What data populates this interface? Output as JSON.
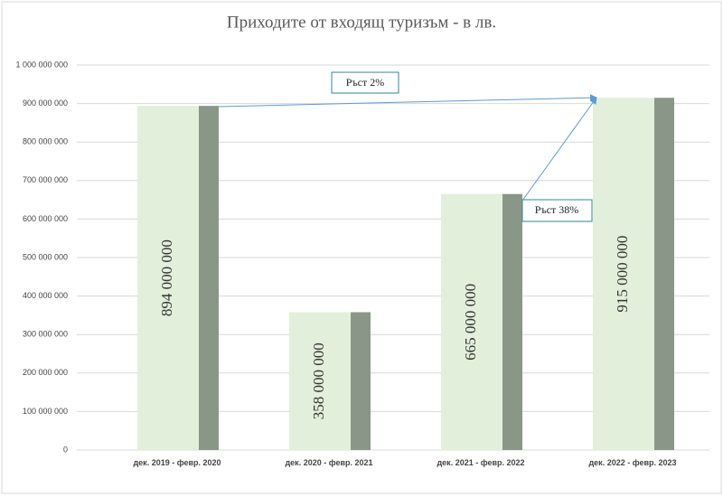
{
  "chart_data": {
    "type": "bar",
    "title": "Приходите от входящ туризъм - в лв.",
    "categories": [
      "дек. 2019 - февр. 2020",
      "дек. 2020 - февр. 2021",
      "дек. 2021 - февр. 2022",
      "дек. 2022 - февр. 2023"
    ],
    "values": [
      894000000,
      358000000,
      665000000,
      915000000
    ],
    "value_labels": [
      "894 000 000",
      "358 000 000",
      "665 000 000",
      "915 000 000"
    ],
    "colors": [
      "#e2efda",
      "#8a9788"
    ],
    "ylim": [
      0,
      1000000000
    ],
    "yticks": [
      0,
      {
        "value": 100000000,
        "label": "100 000 000"
      },
      {
        "value": 200000000,
        "label": "200 000 000"
      },
      {
        "value": 300000000,
        "label": "300 000 000"
      },
      {
        "value": 400000000,
        "label": "400 000 000"
      },
      {
        "value": 500000000,
        "label": "500 000 000"
      },
      {
        "value": 600000000,
        "label": "600 000 000"
      },
      {
        "value": 700000000,
        "label": "700 000 000"
      },
      {
        "value": 800000000,
        "label": "800 000 000"
      },
      {
        "value": 900000000,
        "label": "900 000 000"
      },
      {
        "value": 1000000000,
        "label": "1 000 000 000"
      }
    ],
    "grid": true,
    "annotations": [
      {
        "text": "Ръст 2%"
      },
      {
        "text": "Ръст 38%"
      }
    ]
  }
}
